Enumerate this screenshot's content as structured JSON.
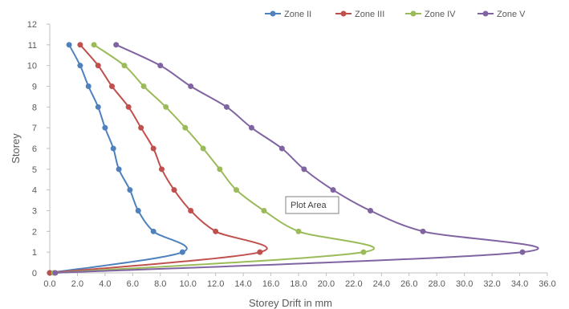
{
  "chart_data": {
    "type": "line",
    "title": "",
    "xlabel": "Storey   Drift   in   mm",
    "ylabel": "Storey",
    "xlim": [
      0,
      36
    ],
    "ylim": [
      0,
      12
    ],
    "x_ticks": [
      "0.0",
      "2.0",
      "4.0",
      "6.0",
      "8.0",
      "10.0",
      "12.0",
      "14.0",
      "16.0",
      "18.0",
      "20.0",
      "22.0",
      "24.0",
      "26.0",
      "28.0",
      "30.0",
      "32.0",
      "34.0",
      "36.0"
    ],
    "y_ticks": [
      "0",
      "1",
      "2",
      "3",
      "4",
      "5",
      "6",
      "7",
      "8",
      "9",
      "10",
      "11",
      "12"
    ],
    "grid": false,
    "legend_position": "top-right",
    "smooth": true,
    "series": [
      {
        "name": "Zone II",
        "color": "#4f81bd",
        "x": [
          0.0,
          9.6,
          7.5,
          6.4,
          5.8,
          5.0,
          4.6,
          4.0,
          3.5,
          2.8,
          2.2,
          1.4
        ],
        "y": [
          0,
          1,
          2,
          3,
          4,
          5,
          6,
          7,
          8,
          9,
          10,
          11
        ]
      },
      {
        "name": "Zone III",
        "color": "#c0504d",
        "x": [
          0.0,
          15.2,
          12.0,
          10.2,
          9.0,
          8.1,
          7.5,
          6.6,
          5.7,
          4.5,
          3.5,
          2.2
        ],
        "y": [
          0,
          1,
          2,
          3,
          4,
          5,
          6,
          7,
          8,
          9,
          10,
          11
        ]
      },
      {
        "name": "Zone IV",
        "color": "#9bbb59",
        "x": [
          0.3,
          22.7,
          18.0,
          15.5,
          13.5,
          12.3,
          11.1,
          9.8,
          8.4,
          6.8,
          5.4,
          3.2
        ],
        "y": [
          0,
          1,
          2,
          3,
          4,
          5,
          6,
          7,
          8,
          9,
          10,
          11
        ]
      },
      {
        "name": "Zone V",
        "color": "#8064a2",
        "x": [
          0.4,
          34.2,
          27.0,
          23.2,
          20.5,
          18.4,
          16.8,
          14.6,
          12.8,
          10.2,
          8.0,
          4.8
        ],
        "y": [
          0,
          1,
          2,
          3,
          4,
          5,
          6,
          7,
          8,
          9,
          10,
          11
        ]
      }
    ],
    "annotation": "Plot Area"
  }
}
